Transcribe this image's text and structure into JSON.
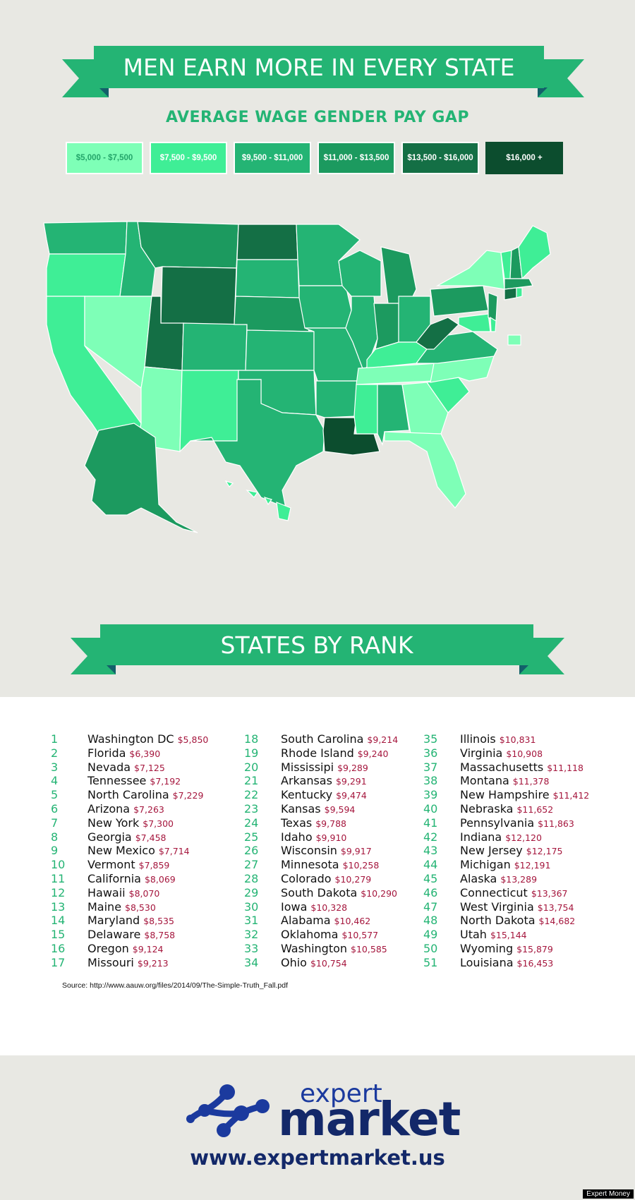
{
  "header": {
    "title": "MEN EARN MORE IN EVERY STATE",
    "subtitle": "AVERAGE WAGE GENDER PAY GAP"
  },
  "legend": [
    {
      "label": "$5,000 - $7,500",
      "color": "#7effb7",
      "text": "#24a56a"
    },
    {
      "label": "$7,500 - $9,500",
      "color": "#3fee96",
      "text": "#ffffff"
    },
    {
      "label": "$9,500 - $11,000",
      "color": "#24b474",
      "text": "#ffffff"
    },
    {
      "label": "$11,000 - $13,500",
      "color": "#1c9a5f",
      "text": "#ffffff"
    },
    {
      "label": "$13,500 - $16,000",
      "color": "#146f45",
      "text": "#ffffff"
    },
    {
      "label": "$16,000 +",
      "color": "#0c4d2e",
      "text": "#ffffff"
    }
  ],
  "rank_title": "STATES BY RANK",
  "ranks": [
    {
      "rank": "1",
      "state": "Washington DC",
      "gap": "$5,850"
    },
    {
      "rank": "2",
      "state": "Florida",
      "gap": "$6,390"
    },
    {
      "rank": "3",
      "state": "Nevada",
      "gap": "$7,125"
    },
    {
      "rank": "4",
      "state": "Tennessee",
      "gap": "$7,192"
    },
    {
      "rank": "5",
      "state": "North Carolina",
      "gap": "$7,229"
    },
    {
      "rank": "6",
      "state": "Arizona",
      "gap": "$7,263"
    },
    {
      "rank": "7",
      "state": "New York",
      "gap": "$7,300"
    },
    {
      "rank": "8",
      "state": "Georgia",
      "gap": "$7,458"
    },
    {
      "rank": "9",
      "state": "New Mexico",
      "gap": "$7,714"
    },
    {
      "rank": "10",
      "state": "Vermont",
      "gap": "$7,859"
    },
    {
      "rank": "11",
      "state": "California",
      "gap": "$8,069"
    },
    {
      "rank": "12",
      "state": "Hawaii",
      "gap": "$8,070"
    },
    {
      "rank": "13",
      "state": "Maine",
      "gap": "$8,530"
    },
    {
      "rank": "14",
      "state": "Maryland",
      "gap": "$8,535"
    },
    {
      "rank": "15",
      "state": "Delaware",
      "gap": "$8,758"
    },
    {
      "rank": "16",
      "state": "Oregon",
      "gap": "$9,124"
    },
    {
      "rank": "17",
      "state": "Missouri",
      "gap": "$9,213"
    },
    {
      "rank": "18",
      "state": "South Carolina",
      "gap": "$9,214"
    },
    {
      "rank": "19",
      "state": "Rhode Island",
      "gap": "$9,240"
    },
    {
      "rank": "20",
      "state": "Mississipi",
      "gap": "$9,289"
    },
    {
      "rank": "21",
      "state": "Arkansas",
      "gap": "$9,291"
    },
    {
      "rank": "22",
      "state": "Kentucky",
      "gap": "$9,474"
    },
    {
      "rank": "23",
      "state": "Kansas",
      "gap": "$9,594"
    },
    {
      "rank": "24",
      "state": "Texas",
      "gap": "$9,788"
    },
    {
      "rank": "25",
      "state": "Idaho",
      "gap": "$9,910"
    },
    {
      "rank": "26",
      "state": "Wisconsin",
      "gap": "$9,917"
    },
    {
      "rank": "27",
      "state": "Minnesota",
      "gap": "$10,258"
    },
    {
      "rank": "28",
      "state": "Colorado",
      "gap": "$10,279"
    },
    {
      "rank": "29",
      "state": "South Dakota",
      "gap": "$10,290"
    },
    {
      "rank": "30",
      "state": "Iowa",
      "gap": "$10,328"
    },
    {
      "rank": "31",
      "state": "Alabama",
      "gap": "$10,462"
    },
    {
      "rank": "32",
      "state": "Oklahoma",
      "gap": "$10,577"
    },
    {
      "rank": "33",
      "state": "Washington",
      "gap": "$10,585"
    },
    {
      "rank": "34",
      "state": "Ohio",
      "gap": "$10,754"
    },
    {
      "rank": "35",
      "state": "Illinois",
      "gap": "$10,831"
    },
    {
      "rank": "36",
      "state": "Virginia",
      "gap": "$10,908"
    },
    {
      "rank": "37",
      "state": "Massachusetts",
      "gap": "$11,118"
    },
    {
      "rank": "38",
      "state": "Montana",
      "gap": "$11,378"
    },
    {
      "rank": "39",
      "state": "New Hampshire",
      "gap": "$11,412"
    },
    {
      "rank": "40",
      "state": "Nebraska",
      "gap": "$11,652"
    },
    {
      "rank": "41",
      "state": "Pennsylvania",
      "gap": "$11,863"
    },
    {
      "rank": "42",
      "state": "Indiana",
      "gap": "$12,120"
    },
    {
      "rank": "43",
      "state": "New Jersey",
      "gap": "$12,175"
    },
    {
      "rank": "44",
      "state": "Michigan",
      "gap": "$12,191"
    },
    {
      "rank": "45",
      "state": "Alaska",
      "gap": "$13,289"
    },
    {
      "rank": "46",
      "state": "Connecticut",
      "gap": "$13,367"
    },
    {
      "rank": "47",
      "state": "West Virginia",
      "gap": "$13,754"
    },
    {
      "rank": "48",
      "state": "North Dakota",
      "gap": "$14,682"
    },
    {
      "rank": "49",
      "state": "Utah",
      "gap": "$15,144"
    },
    {
      "rank": "50",
      "state": "Wyoming",
      "gap": "$15,879"
    },
    {
      "rank": "51",
      "state": "Louisiana",
      "gap": "$16,453"
    }
  ],
  "source": "Source: http://www.aauw.org/files/2014/09/The-Simple-Truth_Fall.pdf",
  "brand": {
    "word1": "expert",
    "word2": "market",
    "url": "www.expertmarket.us",
    "logo_color": "#1b3a9e"
  },
  "credit": "Expert Money"
}
